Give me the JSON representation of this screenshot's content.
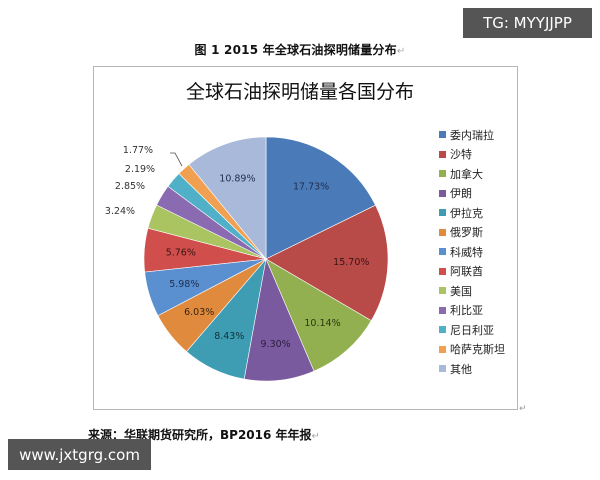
{
  "figure_caption": "图 1   2015 年全球石油探明储量分布",
  "caption_mark": "↵",
  "source_text": "来源：华联期货研究所，BP2016 年年报",
  "source_mark": "↵",
  "corner_mark": "↵",
  "watermarks": {
    "top_right": "TG: MYYJJPP",
    "bottom_left": "www.jxtgrg.com"
  },
  "chart_data": {
    "type": "pie",
    "title": "全球石油探明储量各国分布",
    "start_angle": "12 o'clock",
    "direction": "clockwise",
    "legend_position": "right",
    "categories": [
      "委内瑞拉",
      "沙特",
      "加拿大",
      "伊朗",
      "伊拉克",
      "俄罗斯",
      "科威特",
      "阿联酋",
      "美国",
      "利比亚",
      "尼日利亚",
      "哈萨克斯坦",
      "其他"
    ],
    "values": [
      17.73,
      15.7,
      10.14,
      9.3,
      8.43,
      6.03,
      5.98,
      5.76,
      3.24,
      2.85,
      2.19,
      1.77,
      10.89
    ],
    "labels": [
      "17.73%",
      "15.70%",
      "10.14%",
      "9.30%",
      "8.43%",
      "6.03%",
      "5.98%",
      "5.76%",
      "3.24%",
      "2.85%",
      "2.19%",
      "1.77%",
      "10.89%"
    ],
    "colors": [
      "#4a7ab8",
      "#b84a48",
      "#93b050",
      "#7a5a9e",
      "#3e9db3",
      "#e08a3e",
      "#5a8fd0",
      "#d04e4c",
      "#a9c460",
      "#8a6ab0",
      "#4fb0c8",
      "#f0a050",
      "#a9b9d9"
    ],
    "label_colors": [
      "#1f2f4f",
      "#3a1515",
      "#2a3a10",
      "#2a1f3f",
      "#10303a",
      "#3a2410",
      "#1f2f4f",
      "#3a1515",
      "#2a3a10",
      "#2a1f3f",
      "#10303a",
      "#3a2410",
      "#1f2f4f"
    ],
    "unit": "%"
  }
}
